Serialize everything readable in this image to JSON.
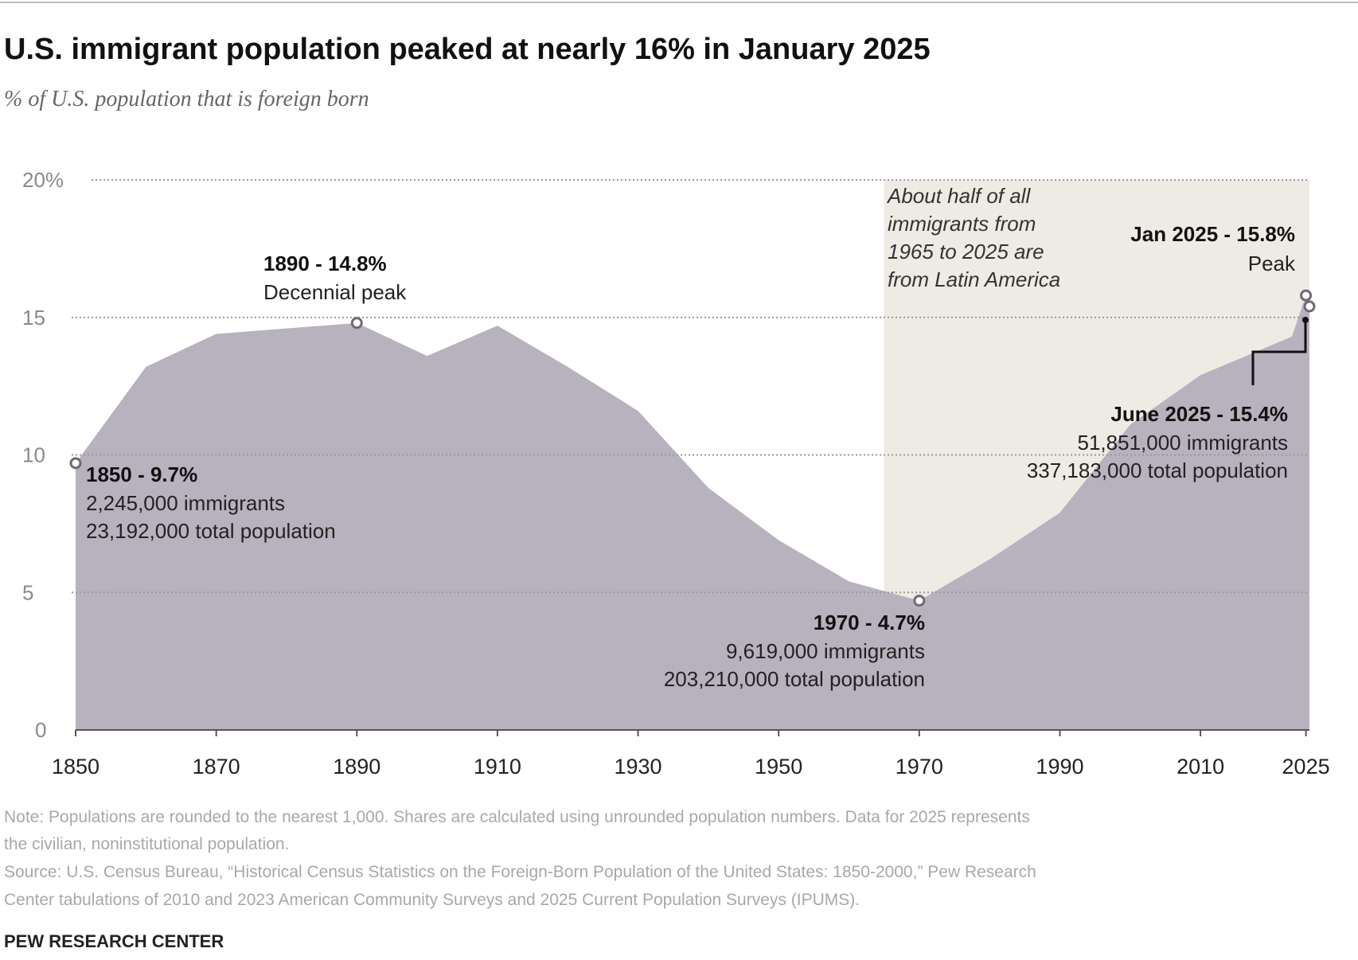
{
  "chart_data": {
    "type": "area",
    "title": "U.S. immigrant population peaked at nearly 16% in January 2025",
    "subtitle": "% of U.S. population that is foreign born",
    "x": [
      1850,
      1860,
      1870,
      1890,
      1900,
      1910,
      1920,
      1930,
      1940,
      1950,
      1960,
      1970,
      1980,
      1990,
      2000,
      2010,
      2023,
      2025.0,
      2025.5
    ],
    "values": [
      9.7,
      13.2,
      14.4,
      14.8,
      13.6,
      14.7,
      13.2,
      11.6,
      8.8,
      6.9,
      5.4,
      4.7,
      6.2,
      7.9,
      11.1,
      12.9,
      14.3,
      15.8,
      15.4
    ],
    "xlim": [
      1850,
      2025.5
    ],
    "ylim": [
      0,
      20
    ],
    "yticks": [
      0,
      5,
      10,
      15,
      20
    ],
    "ytick_labels": [
      "0",
      "5",
      "10",
      "15",
      "20%"
    ],
    "xticks": [
      1850,
      1870,
      1890,
      1910,
      1930,
      1950,
      1970,
      1990,
      2010,
      2025
    ],
    "xtick_labels": [
      "1850",
      "1870",
      "1890",
      "1910",
      "1930",
      "1950",
      "1970",
      "1990",
      "2010",
      "2025"
    ],
    "grid": "horizontal dotted",
    "area_color": "#b7b2be",
    "highlight_band": {
      "from": 1965,
      "to": 2025.5,
      "color": "#edebe4",
      "label_lines": [
        "About half of all",
        "immigrants from",
        "1965 to 2025 are",
        "from Latin America"
      ]
    },
    "annotations": {
      "a1850": {
        "title": "1850 - 9.7%",
        "line1": "2,245,000 immigrants",
        "line2": "23,192,000 total population"
      },
      "a1890": {
        "title": "1890 - 14.8%",
        "line1": "Decennial peak"
      },
      "a1970": {
        "title": "1970 - 4.7%",
        "line1": "9,619,000 immigrants",
        "line2": "203,210,000 total population"
      },
      "ajan2025": {
        "title": "Jan 2025 - 15.8%",
        "line1": "Peak"
      },
      "ajun2025": {
        "title": "June 2025 - 15.4%",
        "line1": "51,851,000 immigrants",
        "line2": "337,183,000 total population"
      }
    }
  },
  "footer": {
    "note_line1": "Note: Populations are rounded to the nearest 1,000. Shares are calculated using unrounded population numbers. Data for 2025 represents",
    "note_line2": "the civilian, noninstitutional population.",
    "source_line1": "Source: U.S. Census Bureau, “Historical Census Statistics on the Foreign-Born Population of the United States: 1850-2000,” Pew Research",
    "source_line2": "Center tabulations of 2010 and 2023 American Community Surveys and 2025 Current Population Surveys (IPUMS).",
    "brand": "PEW RESEARCH CENTER"
  }
}
